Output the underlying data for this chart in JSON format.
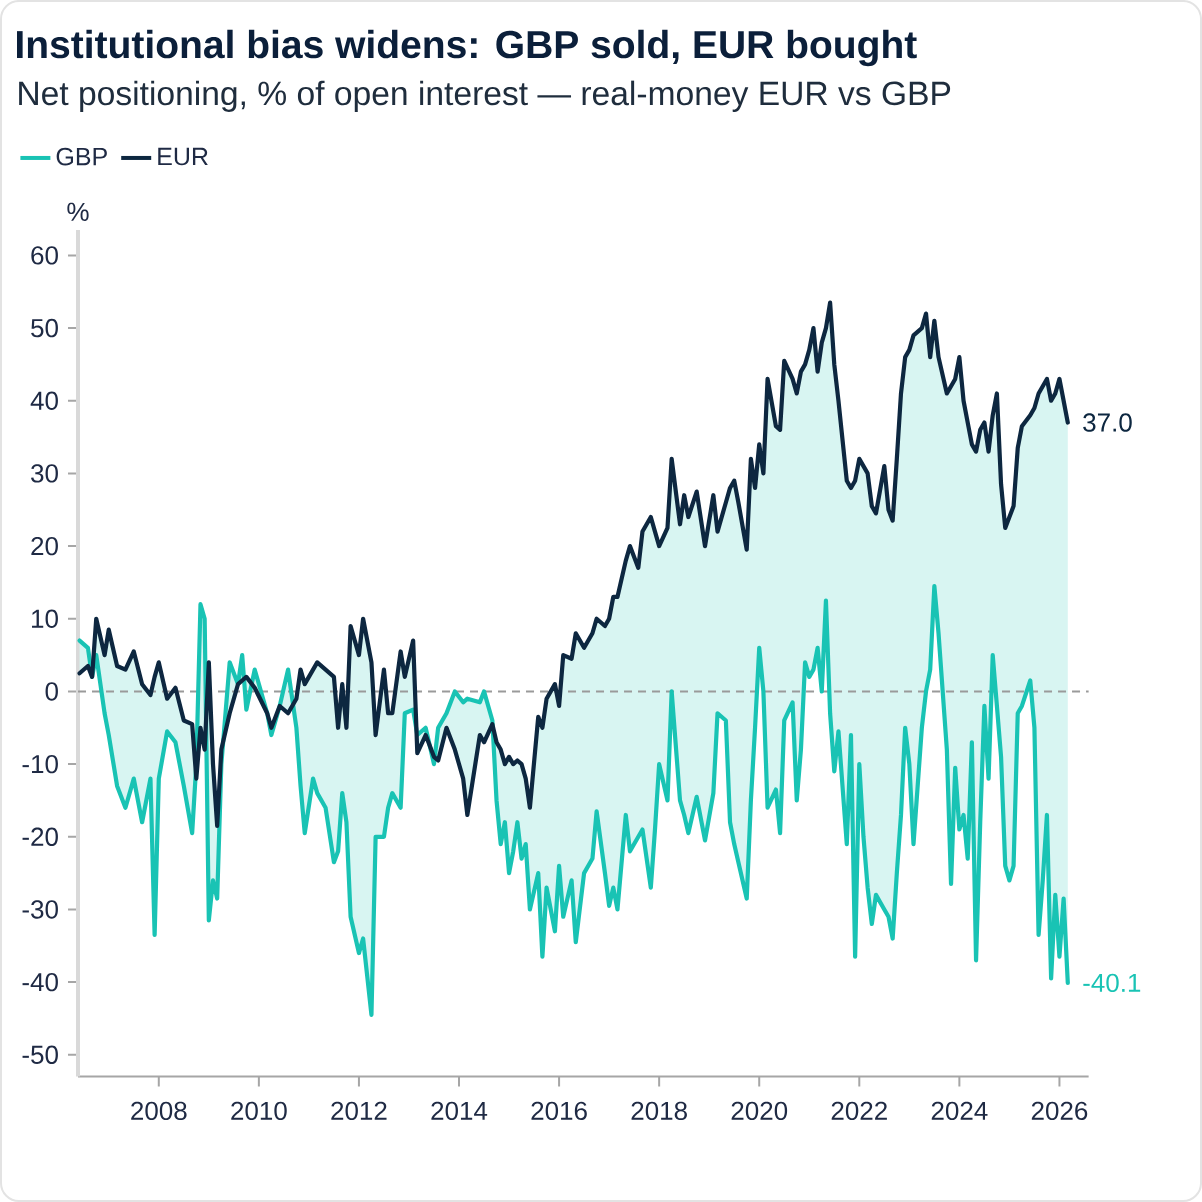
{
  "chart_data": {
    "type": "line",
    "title": "Institutional bias widens: GBP sold, EUR bought",
    "subtitle": "Net positioning, % of open interest — real-money EUR vs GBP",
    "ylabel": "%",
    "x": [
      "2006-06",
      "2006-08",
      "2006-09",
      "2006-10",
      "2006-12",
      "2007-01",
      "2007-03",
      "2007-05",
      "2007-07",
      "2007-09",
      "2007-11",
      "2007-12",
      "2008-01",
      "2008-03",
      "2008-05",
      "2008-07",
      "2008-09",
      "2008-10",
      "2008-11",
      "2008-12",
      "2009-01",
      "2009-02",
      "2009-03",
      "2009-04",
      "2009-06",
      "2009-08",
      "2009-09",
      "2009-10",
      "2009-12",
      "2010-03",
      "2010-04",
      "2010-06",
      "2010-08",
      "2010-10",
      "2010-11",
      "2010-12",
      "2011-02",
      "2011-03",
      "2011-05",
      "2011-07",
      "2011-08",
      "2011-09",
      "2011-10",
      "2011-11",
      "2012-01",
      "2012-02",
      "2012-04",
      "2012-05",
      "2012-07",
      "2012-08",
      "2012-09",
      "2012-11",
      "2012-12",
      "2013-02",
      "2013-03",
      "2013-05",
      "2013-07",
      "2013-08",
      "2013-10",
      "2013-12",
      "2014-02",
      "2014-03",
      "2014-06",
      "2014-07",
      "2014-09",
      "2014-10",
      "2014-11",
      "2014-12",
      "2015-01",
      "2015-02",
      "2015-03",
      "2015-04",
      "2015-05",
      "2015-06",
      "2015-08",
      "2015-09",
      "2015-10",
      "2015-12",
      "2016-01",
      "2016-02",
      "2016-04",
      "2016-05",
      "2016-07",
      "2016-09",
      "2016-10",
      "2016-12",
      "2017-01",
      "2017-02",
      "2017-03",
      "2017-05",
      "2017-06",
      "2017-08",
      "2017-09",
      "2017-11",
      "2017-12",
      "2018-01",
      "2018-03",
      "2018-04",
      "2018-06",
      "2018-07",
      "2018-08",
      "2018-10",
      "2018-12",
      "2019-02",
      "2019-03",
      "2019-05",
      "2019-06",
      "2019-07",
      "2019-08",
      "2019-10",
      "2019-11",
      "2019-12",
      "2020-01",
      "2020-02",
      "2020-03",
      "2020-05",
      "2020-06",
      "2020-07",
      "2020-09",
      "2020-10",
      "2020-11",
      "2020-12",
      "2021-01",
      "2021-02",
      "2021-03",
      "2021-04",
      "2021-05",
      "2021-06",
      "2021-07",
      "2021-08",
      "2021-10",
      "2021-11",
      "2021-12",
      "2022-01",
      "2022-02",
      "2022-03",
      "2022-04",
      "2022-05",
      "2022-07",
      "2022-08",
      "2022-09",
      "2022-10",
      "2022-11",
      "2022-12",
      "2023-01",
      "2023-02",
      "2023-04",
      "2023-05",
      "2023-06",
      "2023-07",
      "2023-08",
      "2023-10",
      "2023-11",
      "2023-12",
      "2024-01",
      "2024-02",
      "2024-03",
      "2024-04",
      "2024-05",
      "2024-06",
      "2024-07",
      "2024-08",
      "2024-09",
      "2024-10",
      "2024-11",
      "2024-12",
      "2025-01",
      "2025-02",
      "2025-03",
      "2025-04",
      "2025-06",
      "2025-07",
      "2025-08",
      "2025-09",
      "2025-10",
      "2025-11",
      "2025-12",
      "2026-01",
      "2026-02",
      "2026-03"
    ],
    "series": [
      {
        "name": "GBP",
        "color": "#19c3b4",
        "values": [
          7,
          6,
          2,
          5,
          -3,
          -6,
          -13,
          -16,
          -12,
          -18,
          -12,
          -33.5,
          -12,
          -5.5,
          -7,
          -13,
          -19.5,
          -10,
          12,
          10,
          -31.5,
          -26,
          -28.5,
          -10,
          4,
          1,
          5,
          -2.5,
          3,
          -3,
          -6,
          -2,
          3,
          -5,
          -13,
          -19.5,
          -12,
          -14,
          -16,
          -23.5,
          -22,
          -14,
          -18,
          -31,
          -36,
          -34,
          -44.5,
          -20,
          -20,
          -16,
          -14,
          -16,
          -3,
          -2.5,
          -6,
          -5,
          -10,
          -5,
          -3,
          0,
          -1.5,
          -1,
          -1.5,
          0,
          -4,
          -15,
          -21,
          -18,
          -25,
          -22,
          -18,
          -23,
          -21,
          -30,
          -25,
          -36.5,
          -27,
          -33,
          -24,
          -31,
          -26,
          -34.5,
          -25,
          -23,
          -16.5,
          -25,
          -29.5,
          -27,
          -30,
          -17,
          -22,
          -20,
          -19,
          -27,
          -19,
          -10,
          -15,
          0,
          -15,
          -17,
          -19.5,
          -14.5,
          -20.5,
          -14,
          -3,
          -4,
          -18,
          -21,
          -23.5,
          -28.5,
          -15,
          -5,
          6,
          0,
          -16,
          -13.5,
          -19.5,
          -4,
          -1.5,
          -15,
          -8,
          4,
          2,
          3,
          6,
          0,
          12.5,
          -3,
          -11,
          -5.5,
          -21,
          -6,
          -36.5,
          -10,
          -20,
          -27,
          -32,
          -28,
          -30,
          -31,
          -34,
          -25,
          -17,
          -5,
          -10,
          -21,
          -5,
          0,
          3,
          14.5,
          8,
          -8,
          -26.5,
          -10.5,
          -19,
          -17,
          -23,
          -7,
          -37,
          -18,
          -2,
          -12,
          5,
          -2,
          -9,
          -24,
          -26,
          -24,
          -3,
          -2,
          1.5,
          -5,
          -33.5,
          -26,
          -17,
          -39.5,
          -28,
          -36.5,
          -28.5,
          -40.1
        ],
        "lower": [
          7,
          6,
          2,
          5,
          -3,
          -6,
          -13,
          -16,
          -12,
          -18,
          -12,
          -33.5,
          -12,
          -5.5,
          -7,
          -13,
          -19.5,
          -10,
          12,
          10,
          -31.5,
          -26,
          -28.5,
          -10,
          4,
          1,
          5,
          -2.5,
          3,
          -3,
          -6,
          -2,
          3,
          -5,
          -13,
          -19.5,
          -12,
          -14,
          -16,
          -23.5,
          -22,
          -14,
          -18,
          -31,
          -36,
          -34,
          -44.5,
          -20,
          -20,
          -16,
          -14,
          -16,
          -3,
          -2.5,
          -6,
          -5,
          -10,
          -5,
          -3,
          0,
          -1.5,
          -1,
          -1.5,
          0,
          -4,
          -15,
          -21,
          -18,
          -25,
          -22,
          -18,
          -23,
          -21,
          -30,
          -25,
          -36.5,
          -27,
          -33,
          -24,
          -31,
          -26,
          -34.5,
          -25,
          -23,
          -16.5,
          -25,
          -29.5,
          -27,
          -30,
          -17,
          -22,
          -20,
          -19,
          -27,
          -19,
          -10,
          -15,
          0,
          -15,
          -17,
          -19.5,
          -14.5,
          -20.5,
          -14,
          -3,
          -4,
          -18,
          -21,
          -23.5,
          -28.5,
          -15,
          -5,
          6,
          0,
          -16,
          -13.5,
          -19.5,
          -4,
          -1.5,
          -15,
          -8,
          4,
          2,
          3,
          6,
          0,
          12.5,
          -3,
          -11,
          -5.5,
          -21,
          -6,
          -36.5,
          -10,
          -20,
          -27,
          -32,
          -28,
          -30,
          -31,
          -34,
          -25,
          -17,
          -5,
          -10,
          -21,
          -5,
          0,
          3,
          14.5,
          8,
          -8,
          -26.5,
          -10.5,
          -19,
          -17,
          -23,
          -7,
          -37,
          -18,
          -2,
          -12,
          5,
          -2,
          -9,
          -24,
          -26,
          -24,
          -3,
          -2,
          1.5,
          -5,
          -33.5,
          -26,
          -17,
          -39.5,
          -28,
          -36.5,
          -28.5,
          -40.1
        ],
        "upper": [
          2.5,
          3.5,
          2,
          10,
          5,
          8.5,
          3.5,
          3,
          5.5,
          1,
          -0.5,
          2,
          4,
          -1,
          0.5,
          -4,
          -4.5,
          -12,
          -5,
          -8,
          4,
          -10,
          -18.5,
          -8,
          -3,
          1,
          1.5,
          2,
          0.5,
          -3,
          -5,
          -2,
          -3,
          -1,
          3,
          1,
          3,
          4,
          3,
          2,
          -5,
          1,
          -5,
          9,
          5,
          10,
          4,
          -6,
          3,
          -3,
          -3,
          5.5,
          2,
          7,
          -8.5,
          -6,
          -9,
          -9.5,
          -5,
          -8,
          -12,
          -17,
          -6,
          -7,
          -4.5,
          -7,
          -8,
          -10,
          -9,
          -10,
          -9.5,
          -10,
          -12,
          -16,
          -3.5,
          -5,
          -1,
          1,
          -2,
          5,
          4.5,
          8,
          6,
          8,
          10,
          9,
          10,
          13,
          13,
          18,
          20,
          17,
          22,
          24,
          22,
          20,
          22.5,
          32,
          23,
          27,
          24,
          27.5,
          20,
          27,
          22,
          26,
          28,
          29,
          26,
          19.5,
          32,
          28,
          34,
          30,
          43,
          36.5,
          36,
          45.5,
          43,
          41,
          44,
          45,
          47,
          50,
          44,
          48,
          50,
          53.5,
          45,
          40,
          29,
          28,
          29,
          32,
          31,
          30,
          25.5,
          24.5,
          31,
          25,
          23.5,
          32,
          41,
          46,
          47,
          49,
          50,
          52,
          46,
          51,
          46,
          41,
          42,
          43,
          46,
          40,
          37,
          34,
          33,
          36,
          37,
          33,
          38,
          41,
          28.5,
          22.5,
          24,
          25.5,
          33.5,
          36.5,
          38,
          39,
          41,
          42,
          43,
          40,
          41,
          43,
          40,
          37.0
        ],
        "value_labels": [
          null,
          null,
          null,
          null,
          null,
          null,
          null,
          null,
          null,
          null,
          null,
          null,
          null,
          null,
          null,
          null,
          null,
          null,
          null,
          null,
          null,
          null,
          null,
          null,
          null,
          null,
          null,
          null,
          null,
          null,
          null,
          null,
          null,
          null,
          null,
          null,
          null,
          null,
          null,
          null,
          null,
          null,
          null,
          null,
          null,
          null,
          null,
          null,
          null,
          null,
          null,
          null,
          null,
          null,
          null,
          null,
          null,
          null,
          null,
          null,
          null,
          null,
          null,
          null,
          null,
          null,
          null,
          null,
          null,
          null,
          null,
          null,
          null,
          null,
          null,
          null,
          null,
          null,
          null,
          null,
          null,
          null,
          null,
          null,
          null,
          null,
          null,
          null,
          null,
          null,
          null,
          null,
          null,
          null,
          null,
          null,
          null,
          null,
          null,
          null,
          null,
          null,
          null,
          null,
          null,
          null,
          null,
          null,
          null,
          null,
          null,
          null,
          null,
          null,
          null,
          null,
          null,
          null,
          null,
          null,
          null,
          null,
          null,
          null,
          null,
          null,
          null,
          null,
          null,
          null,
          null,
          null,
          null,
          null,
          null,
          null,
          null,
          null,
          null,
          null,
          null,
          null,
          null,
          null,
          null,
          null,
          null,
          null,
          null,
          null,
          null,
          null,
          null,
          null,
          null,
          null,
          null,
          null,
          null,
          null,
          null,
          null,
          null,
          null,
          null,
          null,
          null,
          null,
          null,
          null,
          null,
          null,
          null,
          null,
          null,
          null,
          null,
          null,
          null,
          "-40.1"
        ]
      },
      {
        "name": "EUR",
        "color": "#0d2740",
        "values": [
          2.5,
          3.5,
          2,
          10,
          5,
          8.5,
          3.5,
          3,
          5.5,
          1,
          -0.5,
          2,
          4,
          -1,
          0.5,
          -4,
          -4.5,
          -12,
          -5,
          -8,
          4,
          -10,
          -18.5,
          -8,
          -3,
          1,
          1.5,
          2,
          0.5,
          -3,
          -5,
          -2,
          -3,
          -1,
          3,
          1,
          3,
          4,
          3,
          2,
          -5,
          1,
          -5,
          9,
          5,
          10,
          4,
          -6,
          3,
          -3,
          -3,
          5.5,
          2,
          7,
          -8.5,
          -6,
          -9,
          -9.5,
          -5,
          -8,
          -12,
          -17,
          -6,
          -7,
          -4.5,
          -7,
          -8,
          -10,
          -9,
          -10,
          -9.5,
          -10,
          -12,
          -16,
          -3.5,
          -5,
          -1,
          1,
          -2,
          5,
          4.5,
          8,
          6,
          8,
          10,
          9,
          10,
          13,
          13,
          18,
          20,
          17,
          22,
          24,
          22,
          20,
          22.5,
          32,
          23,
          27,
          24,
          27.5,
          20,
          27,
          22,
          26,
          28,
          29,
          26,
          19.5,
          32,
          28,
          34,
          30,
          43,
          36.5,
          36,
          45.5,
          43,
          41,
          44,
          45,
          47,
          50,
          44,
          48,
          50,
          53.5,
          45,
          40,
          29,
          28,
          29,
          32,
          31,
          30,
          25.5,
          24.5,
          31,
          25,
          23.5,
          32,
          41,
          46,
          47,
          49,
          50,
          52,
          46,
          51,
          46,
          41,
          42,
          43,
          46,
          40,
          37,
          34,
          33,
          36,
          37,
          33,
          38,
          41,
          28.5,
          22.5,
          24,
          25.5,
          33.5,
          36.5,
          38,
          39,
          41,
          42,
          43,
          40,
          41,
          43,
          40,
          37.0
        ],
        "value_labels": [
          null,
          null,
          null,
          null,
          null,
          null,
          null,
          null,
          null,
          null,
          null,
          null,
          null,
          null,
          null,
          null,
          null,
          null,
          null,
          null,
          null,
          null,
          null,
          null,
          null,
          null,
          null,
          null,
          null,
          null,
          null,
          null,
          null,
          null,
          null,
          null,
          null,
          null,
          null,
          null,
          null,
          null,
          null,
          null,
          null,
          null,
          null,
          null,
          null,
          null,
          null,
          null,
          null,
          null,
          null,
          null,
          null,
          null,
          null,
          null,
          null,
          null,
          null,
          null,
          null,
          null,
          null,
          null,
          null,
          null,
          null,
          null,
          null,
          null,
          null,
          null,
          null,
          null,
          null,
          null,
          null,
          null,
          null,
          null,
          null,
          null,
          null,
          null,
          null,
          null,
          null,
          null,
          null,
          null,
          null,
          null,
          null,
          null,
          null,
          null,
          null,
          null,
          null,
          null,
          null,
          null,
          null,
          null,
          null,
          null,
          null,
          null,
          null,
          null,
          null,
          null,
          null,
          null,
          null,
          null,
          null,
          null,
          null,
          null,
          null,
          null,
          null,
          null,
          null,
          null,
          null,
          null,
          null,
          null,
          null,
          null,
          null,
          null,
          null,
          null,
          null,
          null,
          null,
          null,
          null,
          null,
          null,
          null,
          null,
          null,
          null,
          null,
          null,
          null,
          null,
          null,
          null,
          null,
          null,
          null,
          null,
          null,
          null,
          null,
          null,
          null,
          null,
          null,
          null,
          null,
          null,
          null,
          null,
          null,
          null,
          null,
          null,
          null,
          null,
          "37.0"
        ]
      }
    ],
    "xlim": [
      "2006-05-20",
      "2026-08"
    ],
    "xticks": [
      {
        "value": "2008",
        "label": "2008"
      },
      {
        "value": "2010",
        "label": "2010"
      },
      {
        "value": "2012",
        "label": "2012"
      },
      {
        "value": "2014",
        "label": "2014"
      },
      {
        "value": "2016",
        "label": "2016"
      },
      {
        "value": "2018",
        "label": "2018"
      },
      {
        "value": "2020",
        "label": "2020"
      },
      {
        "value": "2022",
        "label": "2022"
      },
      {
        "value": "2024",
        "label": "2024"
      },
      {
        "value": "2026",
        "label": "2026"
      }
    ],
    "ylim": [
      -53,
      63.5
    ],
    "yticks": [
      -50,
      -40,
      -30,
      -20,
      -10,
      0,
      10,
      20,
      30,
      40,
      50,
      60
    ],
    "ref_lines": [
      {
        "axis": "y",
        "value": 0,
        "color": "#9a9a9a",
        "line_style": "dashed"
      }
    ],
    "legend": "top left",
    "marker": "none",
    "line_style": "solid"
  }
}
